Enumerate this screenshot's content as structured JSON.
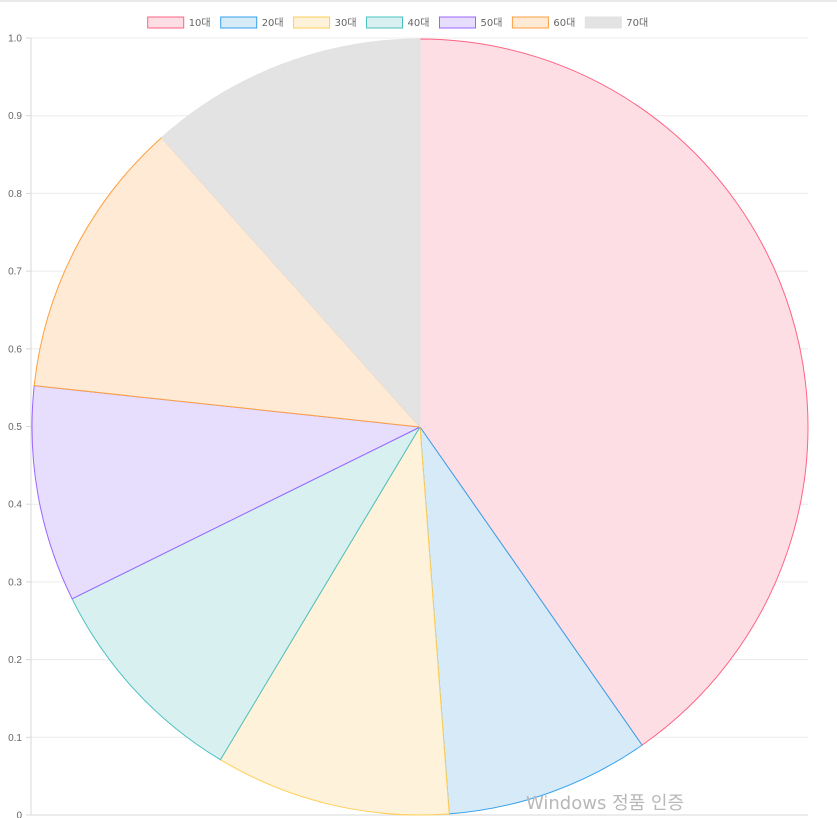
{
  "chart_data": {
    "type": "pie",
    "title": "",
    "legend": "top",
    "grid": true,
    "labels": [
      "10대",
      "20대",
      "30대",
      "40대",
      "50대",
      "60대",
      "70대"
    ],
    "values": [
      0.403,
      0.085,
      0.098,
      0.091,
      0.09,
      0.117,
      0.116
    ],
    "colors": {
      "borders": [
        "#ff6384",
        "#36a2eb",
        "#ffce56",
        "#4bc0c0",
        "#9966ff",
        "#ff9f40",
        "#e2e2e2"
      ],
      "fills": [
        "#fddee4",
        "#d6eaf8",
        "#fff2da",
        "#d8f0ef",
        "#e7ddfd",
        "#ffead5",
        "#e3e3e3"
      ]
    },
    "y_axis": {
      "ylim": [
        0,
        1
      ],
      "ticks": [
        "0",
        "0.1",
        "0.2",
        "0.3",
        "0.4",
        "0.5",
        "0.6",
        "0.7",
        "0.8",
        "0.9",
        "1.0"
      ]
    }
  },
  "watermark": "Windows 정품 인증"
}
